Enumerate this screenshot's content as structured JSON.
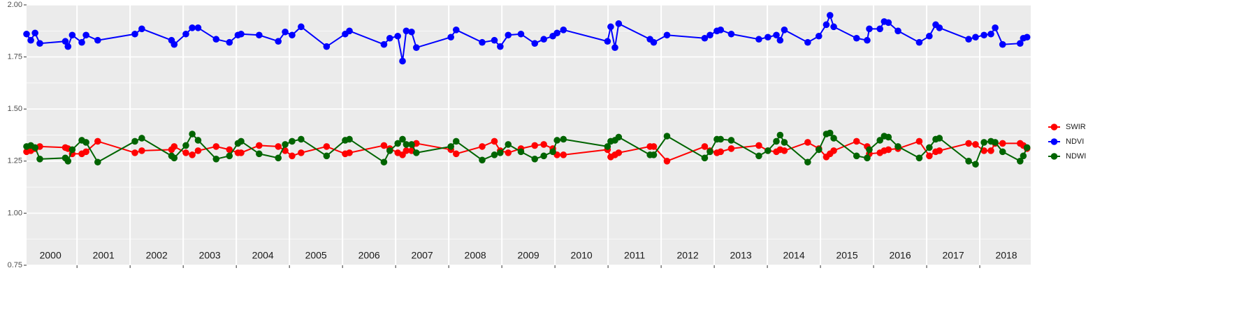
{
  "chart_data": {
    "type": "line",
    "x": [
      2000.05,
      2000.13,
      2000.21,
      2000.3,
      2000.78,
      2000.83,
      2000.91,
      2001.09,
      2001.17,
      2001.39,
      2002.09,
      2002.22,
      2002.78,
      2002.83,
      2003.05,
      2003.17,
      2003.28,
      2003.62,
      2003.87,
      2004.03,
      2004.09,
      2004.43,
      2004.79,
      2004.92,
      2005.05,
      2005.22,
      2005.7,
      2006.05,
      2006.13,
      2006.78,
      2006.89,
      2007.04,
      2007.13,
      2007.2,
      2007.3,
      2007.39,
      2008.04,
      2008.14,
      2008.63,
      2008.86,
      2008.97,
      2009.12,
      2009.36,
      2009.62,
      2009.79,
      2009.96,
      2010.04,
      2010.16,
      2010.99,
      2011.05,
      2011.13,
      2011.2,
      2011.79,
      2011.86,
      2012.11,
      2012.82,
      2012.92,
      2013.05,
      2013.12,
      2013.32,
      2013.84,
      2014.01,
      2014.17,
      2014.24,
      2014.32,
      2014.76,
      2014.97,
      2015.11,
      2015.18,
      2015.25,
      2015.68,
      2015.88,
      2015.92,
      2016.12,
      2016.2,
      2016.28,
      2016.46,
      2016.86,
      2017.05,
      2017.17,
      2017.24,
      2017.79,
      2017.92,
      2018.08,
      2018.21,
      2018.29,
      2018.43,
      2018.76,
      2018.82,
      2018.89
    ],
    "series": [
      {
        "name": "SWIR",
        "color": "#ff0000",
        "values": [
          1.295,
          1.3,
          1.31,
          1.32,
          1.315,
          1.31,
          1.285,
          1.285,
          1.295,
          1.345,
          1.29,
          1.3,
          1.305,
          1.32,
          1.29,
          1.28,
          1.3,
          1.32,
          1.305,
          1.29,
          1.29,
          1.325,
          1.32,
          1.3,
          1.275,
          1.29,
          1.32,
          1.285,
          1.29,
          1.325,
          1.31,
          1.29,
          1.28,
          1.3,
          1.3,
          1.335,
          1.305,
          1.285,
          1.32,
          1.345,
          1.3,
          1.29,
          1.31,
          1.325,
          1.33,
          1.31,
          1.28,
          1.28,
          1.305,
          1.27,
          1.28,
          1.29,
          1.32,
          1.32,
          1.25,
          1.32,
          1.3,
          1.29,
          1.295,
          1.31,
          1.325,
          1.3,
          1.295,
          1.305,
          1.3,
          1.34,
          1.31,
          1.27,
          1.285,
          1.3,
          1.345,
          1.32,
          1.285,
          1.29,
          1.3,
          1.305,
          1.31,
          1.345,
          1.275,
          1.295,
          1.3,
          1.335,
          1.33,
          1.3,
          1.3,
          1.335,
          1.335,
          1.335,
          1.325,
          1.31
        ]
      },
      {
        "name": "NDVI",
        "color": "#0000ff",
        "values": [
          1.86,
          1.83,
          1.865,
          1.815,
          1.825,
          1.8,
          1.855,
          1.82,
          1.855,
          1.83,
          1.86,
          1.885,
          1.83,
          1.81,
          1.86,
          1.89,
          1.89,
          1.835,
          1.82,
          1.855,
          1.86,
          1.855,
          1.825,
          1.87,
          1.855,
          1.895,
          1.8,
          1.86,
          1.875,
          1.81,
          1.84,
          1.85,
          1.73,
          1.875,
          1.87,
          1.795,
          1.845,
          1.88,
          1.82,
          1.83,
          1.8,
          1.855,
          1.86,
          1.815,
          1.835,
          1.85,
          1.865,
          1.88,
          1.825,
          1.895,
          1.795,
          1.91,
          1.835,
          1.82,
          1.855,
          1.84,
          1.855,
          1.875,
          1.88,
          1.86,
          1.835,
          1.845,
          1.855,
          1.83,
          1.88,
          1.82,
          1.85,
          1.905,
          1.95,
          1.895,
          1.84,
          1.83,
          1.885,
          1.885,
          1.92,
          1.915,
          1.875,
          1.82,
          1.85,
          1.905,
          1.89,
          1.835,
          1.845,
          1.855,
          1.86,
          1.89,
          1.81,
          1.815,
          1.84,
          1.845
        ]
      },
      {
        "name": "NDWI",
        "color": "#006400",
        "values": [
          1.32,
          1.325,
          1.315,
          1.26,
          1.265,
          1.25,
          1.305,
          1.35,
          1.34,
          1.245,
          1.345,
          1.36,
          1.275,
          1.265,
          1.325,
          1.38,
          1.35,
          1.26,
          1.275,
          1.335,
          1.345,
          1.285,
          1.265,
          1.33,
          1.345,
          1.355,
          1.275,
          1.35,
          1.355,
          1.245,
          1.3,
          1.335,
          1.355,
          1.33,
          1.33,
          1.29,
          1.32,
          1.345,
          1.255,
          1.28,
          1.29,
          1.33,
          1.295,
          1.26,
          1.275,
          1.295,
          1.35,
          1.355,
          1.32,
          1.345,
          1.35,
          1.365,
          1.28,
          1.28,
          1.37,
          1.265,
          1.295,
          1.355,
          1.355,
          1.35,
          1.275,
          1.3,
          1.345,
          1.375,
          1.34,
          1.245,
          1.305,
          1.38,
          1.385,
          1.36,
          1.275,
          1.265,
          1.305,
          1.35,
          1.37,
          1.365,
          1.32,
          1.265,
          1.315,
          1.355,
          1.36,
          1.25,
          1.235,
          1.34,
          1.345,
          1.34,
          1.295,
          1.25,
          1.275,
          1.315
        ]
      }
    ],
    "xlim": [
      2000.05,
      2018.96
    ],
    "xticks": [
      {
        "value": 2000.5,
        "label": "2000"
      },
      {
        "value": 2001.5,
        "label": "2001"
      },
      {
        "value": 2002.5,
        "label": "2002"
      },
      {
        "value": 2003.5,
        "label": "2003"
      },
      {
        "value": 2004.5,
        "label": "2004"
      },
      {
        "value": 2005.5,
        "label": "2005"
      },
      {
        "value": 2006.5,
        "label": "2006"
      },
      {
        "value": 2007.5,
        "label": "2007"
      },
      {
        "value": 2008.5,
        "label": "2008"
      },
      {
        "value": 2009.5,
        "label": "2009"
      },
      {
        "value": 2010.5,
        "label": "2010"
      },
      {
        "value": 2011.5,
        "label": "2011"
      },
      {
        "value": 2012.5,
        "label": "2012"
      },
      {
        "value": 2013.5,
        "label": "2013"
      },
      {
        "value": 2014.5,
        "label": "2014"
      },
      {
        "value": 2015.5,
        "label": "2015"
      },
      {
        "value": 2016.5,
        "label": "2016"
      },
      {
        "value": 2017.5,
        "label": "2017"
      },
      {
        "value": 2018.5,
        "label": "2018"
      }
    ],
    "ylim": [
      0.75,
      2.0
    ],
    "yticks": [
      {
        "value": 0.75,
        "label": "0.75"
      },
      {
        "value": 1.0,
        "label": "1.00"
      },
      {
        "value": 1.25,
        "label": "1.25"
      },
      {
        "value": 1.5,
        "label": "1.50"
      },
      {
        "value": 1.75,
        "label": "1.75"
      },
      {
        "value": 2.0,
        "label": "2.00"
      }
    ],
    "grid": true
  }
}
